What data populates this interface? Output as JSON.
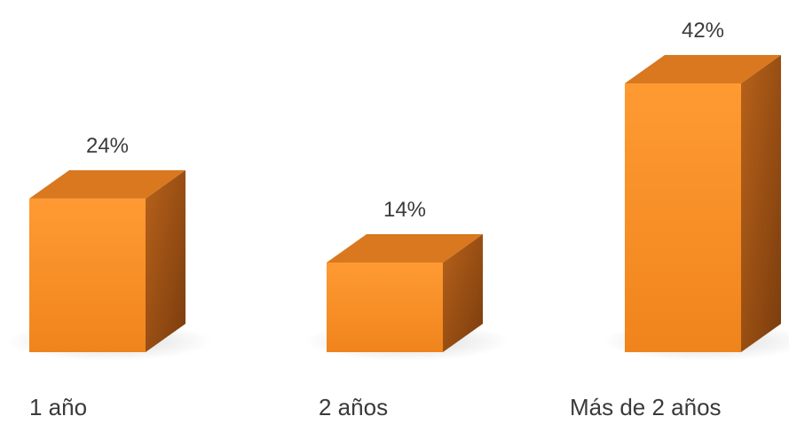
{
  "chart_data": {
    "type": "bar",
    "style": "3d-column",
    "categories": [
      "1 año",
      "2 años",
      "Más de 2 años"
    ],
    "values": [
      24,
      14,
      42
    ],
    "data_labels": [
      "24%",
      "14%",
      "42%"
    ],
    "value_unit": "%",
    "title": "",
    "xlabel": "",
    "ylabel": "",
    "ylim": [
      0,
      42
    ],
    "grid": false,
    "legend": "none",
    "colors": {
      "front_top": "#ff9a33",
      "front_bottom": "#f0841c",
      "top_face": "#d9781f",
      "side_light": "#b8621a",
      "side_dark": "#7a3c0d",
      "shadow": "#c8c8c8",
      "text": "#3a3a3a"
    }
  }
}
